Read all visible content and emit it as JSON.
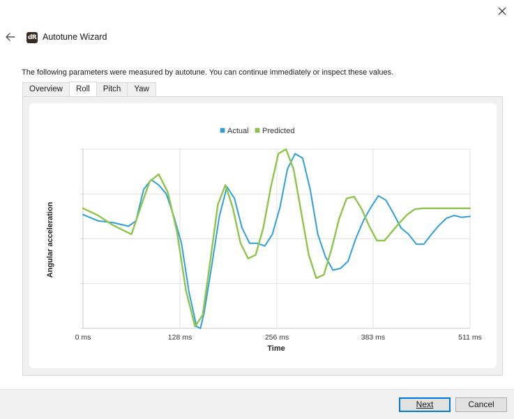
{
  "window": {
    "title": "Autotune Wizard",
    "app_icon_text": "dR",
    "close_icon": "close-icon",
    "back_icon": "arrow-left-icon"
  },
  "intro_text": "The following parameters were measured by autotune.  You can continue immediately or inspect these values.",
  "tabs": [
    {
      "label": "Overview",
      "active": false
    },
    {
      "label": "Roll",
      "active": true
    },
    {
      "label": "Pitch",
      "active": false
    },
    {
      "label": "Yaw",
      "active": false
    }
  ],
  "buttons": {
    "next_label": "Next",
    "cancel_label": "Cancel"
  },
  "colors": {
    "actual": "#2e9fd8",
    "predicted": "#8dc54a",
    "grid": "#e2e2e2",
    "axis": "#c8c8c8"
  },
  "chart_data": {
    "type": "line",
    "title": "",
    "xlabel": "Time",
    "ylabel": "Angular acceleration",
    "xlim": [
      0,
      511
    ],
    "ylim": [
      -1,
      1
    ],
    "x_ticks": [
      "0 ms",
      "128 ms",
      "256 ms",
      "383 ms",
      "511 ms"
    ],
    "x_tick_values": [
      0,
      128,
      256,
      383,
      511
    ],
    "y_grid_values": [
      -1,
      -0.5,
      0,
      0.5,
      1
    ],
    "grid": true,
    "legend_position": "top-center",
    "series": [
      {
        "name": "Actual",
        "x": [
          0,
          20,
          40,
          60,
          70,
          80,
          90,
          100,
          110,
          120,
          130,
          140,
          150,
          155,
          160,
          170,
          180,
          190,
          200,
          210,
          220,
          230,
          240,
          250,
          260,
          270,
          280,
          290,
          300,
          310,
          320,
          330,
          340,
          350,
          360,
          370,
          380,
          390,
          400,
          410,
          420,
          430,
          440,
          450,
          460,
          470,
          480,
          490,
          500,
          511
        ],
        "y": [
          0.27,
          0.2,
          0.18,
          0.14,
          0.2,
          0.55,
          0.66,
          0.6,
          0.5,
          0.25,
          -0.05,
          -0.6,
          -0.98,
          -1.0,
          -0.82,
          -0.3,
          0.25,
          0.58,
          0.45,
          0.12,
          -0.05,
          -0.05,
          -0.08,
          0.05,
          0.35,
          0.78,
          0.95,
          0.9,
          0.55,
          0.05,
          -0.2,
          -0.35,
          -0.33,
          -0.25,
          0.0,
          0.2,
          0.35,
          0.48,
          0.43,
          0.28,
          0.12,
          0.05,
          -0.06,
          -0.06,
          0.05,
          0.15,
          0.23,
          0.26,
          0.24,
          0.25
        ]
      },
      {
        "name": "Predicted",
        "x": [
          0,
          20,
          40,
          64,
          76,
          88,
          100,
          112,
          124,
          136,
          148,
          158,
          168,
          178,
          188,
          198,
          208,
          218,
          228,
          238,
          248,
          258,
          268,
          278,
          288,
          298,
          308,
          318,
          328,
          338,
          348,
          358,
          368,
          378,
          388,
          398,
          408,
          418,
          428,
          438,
          448,
          458,
          468,
          478,
          488,
          498,
          511
        ],
        "y": [
          0.34,
          0.26,
          0.15,
          0.05,
          0.35,
          0.64,
          0.72,
          0.52,
          0.08,
          -0.58,
          -0.98,
          -0.85,
          -0.25,
          0.38,
          0.6,
          0.34,
          -0.05,
          -0.22,
          -0.18,
          0.12,
          0.58,
          0.95,
          1.0,
          0.78,
          0.3,
          -0.18,
          -0.44,
          -0.4,
          -0.12,
          0.22,
          0.45,
          0.47,
          0.33,
          0.14,
          -0.02,
          -0.02,
          0.08,
          0.18,
          0.27,
          0.33,
          0.34,
          0.34,
          0.34,
          0.34,
          0.34,
          0.34,
          0.34
        ]
      }
    ]
  }
}
